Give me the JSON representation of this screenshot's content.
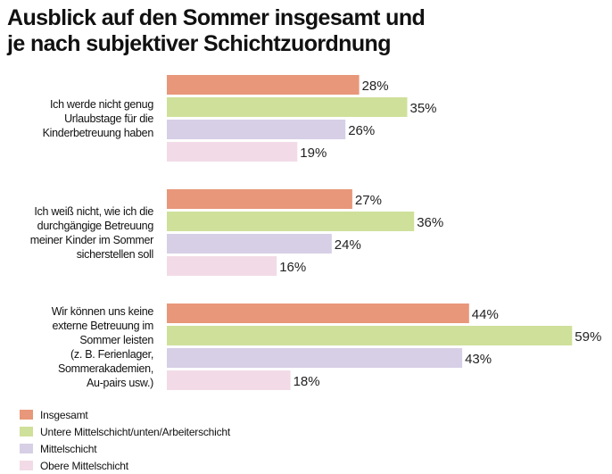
{
  "chart_data": {
    "type": "bar",
    "orientation": "horizontal",
    "title": "Ausblick auf den Sommer insgesamt und je nach subjektiver Schichtzuordnung",
    "title_lines": [
      "Ausblick auf den Sommer insgesamt und",
      "je nach subjektiver Schichtzuordnung"
    ],
    "categories": [
      [
        "Ich werde nicht genug",
        "Urlaubstage für die",
        "Kinderbetreuung haben"
      ],
      [
        "Ich weiß nicht, wie ich die",
        "durchgängige Betreuung",
        "meiner Kinder im Sommer",
        "sicherstellen soll"
      ],
      [
        "Wir können uns keine",
        "externe Betreuung im",
        "Sommer leisten",
        "(z. B. Ferienlager,",
        "Sommerakademien,",
        "Au-pairs usw.)"
      ]
    ],
    "series": [
      {
        "name": "Insgesamt",
        "color": "#e8977a",
        "values": [
          28,
          27,
          44
        ]
      },
      {
        "name": "Untere Mittelschicht/unten/Arbeiterschicht",
        "color": "#cfe09a",
        "values": [
          35,
          36,
          59
        ]
      },
      {
        "name": "Mittelschicht",
        "color": "#d6cfe6",
        "values": [
          26,
          24,
          43
        ]
      },
      {
        "name": "Obere Mittelschicht",
        "color": "#f2dbe6",
        "values": [
          19,
          16,
          18
        ]
      }
    ],
    "value_suffix": "%",
    "xlim": [
      0,
      60
    ],
    "grid": false,
    "legend_position": "bottom-left"
  }
}
